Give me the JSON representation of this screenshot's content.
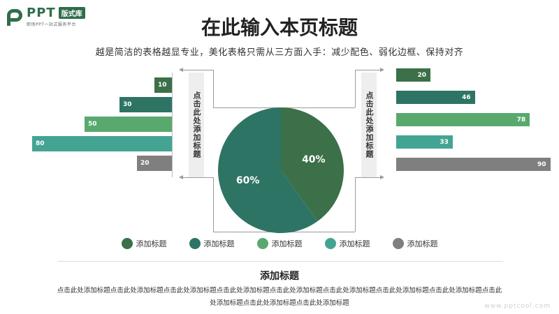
{
  "logo": {
    "brand": "PPT",
    "badge": "版式库",
    "tagline": "职场PPT一站式服务平台"
  },
  "header": {
    "title": "在此输入本页标题",
    "subtitle": "越是简洁的表格越显专业，美化表格只需从三方面入手：减少配色、弱化边框、保持对齐"
  },
  "side_labels": {
    "left": "点击此处添加标题",
    "right": "点击此处添加标题"
  },
  "colors": {
    "c1": "#3b7048",
    "c2": "#2e7465",
    "c3": "#59a96f",
    "c4": "#44a493",
    "c5": "#7f7f7f"
  },
  "chart_data": [
    {
      "type": "bar",
      "orientation": "horizontal",
      "direction": "leftward",
      "values": [
        10,
        30,
        50,
        80,
        20
      ],
      "colors": [
        "#3b7048",
        "#2e7465",
        "#59a96f",
        "#44a493",
        "#7f7f7f"
      ]
    },
    {
      "type": "pie",
      "slices": [
        {
          "value": 40,
          "label": "40%",
          "color": "#3b7048"
        },
        {
          "value": 60,
          "label": "60%",
          "color": "#2e7465"
        }
      ]
    },
    {
      "type": "bar",
      "orientation": "horizontal",
      "direction": "rightward",
      "values": [
        20,
        46,
        78,
        33,
        90
      ],
      "colors": [
        "#3b7048",
        "#2e7465",
        "#59a96f",
        "#44a493",
        "#7f7f7f"
      ]
    }
  ],
  "legend": [
    {
      "label": "添加标题",
      "color": "#3b7048"
    },
    {
      "label": "添加标题",
      "color": "#2e7465"
    },
    {
      "label": "添加标题",
      "color": "#59a96f"
    },
    {
      "label": "添加标题",
      "color": "#44a493"
    },
    {
      "label": "添加标题",
      "color": "#7f7f7f"
    }
  ],
  "section": {
    "title": "添加标题",
    "body": "点击此处添加标题点击此处添加标题点击此处添加标题点击此处添加标题点击此处添加标题点击此处添加标题点击此处添加标题点击此处添加标题点击此处添加标题点击此处添加标题点击此处添加标题"
  },
  "watermark": "www.pptcool.com"
}
